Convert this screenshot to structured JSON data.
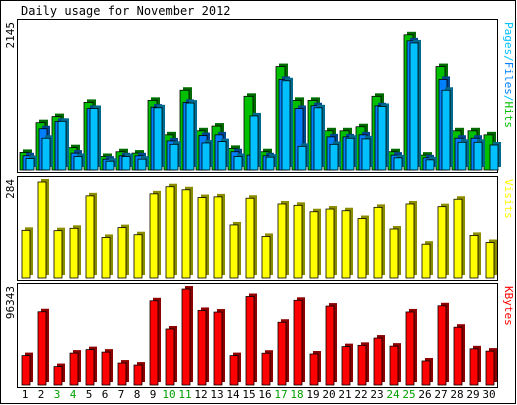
{
  "chart_data": {
    "type": "bar",
    "title": "Daily usage for November 2012",
    "categories": [
      "1",
      "2",
      "3",
      "4",
      "5",
      "6",
      "7",
      "8",
      "9",
      "10",
      "11",
      "12",
      "13",
      "14",
      "15",
      "16",
      "17",
      "18",
      "19",
      "20",
      "21",
      "22",
      "23",
      "24",
      "25",
      "26",
      "27",
      "28",
      "29",
      "30"
    ],
    "weekend_days": [
      "3",
      "4",
      "10",
      "11",
      "17",
      "18",
      "24",
      "25"
    ],
    "panels": [
      {
        "name": "hits-files-pages",
        "ylabel_parts": [
          {
            "text": "Pages",
            "color": "#00c0ff"
          },
          {
            "text": "/",
            "color": "#00c0ff"
          },
          {
            "text": "Files",
            "color": "#0080ff"
          },
          {
            "text": "/",
            "color": "#00c0ff"
          },
          {
            "text": "Hits",
            "color": "#00c000"
          }
        ],
        "ymax_label": "2145",
        "ylim": [
          0,
          2145
        ],
        "series": [
          {
            "name": "Hits",
            "color": "#00c000",
            "values": [
              260,
              700,
              790,
              330,
              1000,
              200,
              270,
              250,
              1030,
              520,
              1180,
              580,
              650,
              320,
              1090,
              270,
              1530,
              1030,
              1030,
              580,
              580,
              640,
              1090,
              270,
              2000,
              220,
              1530,
              580,
              580,
              520
            ]
          },
          {
            "name": "Files",
            "color": "#0080ff",
            "values": [
              210,
              610,
              720,
              250,
              910,
              160,
              210,
              210,
              930,
              430,
              1000,
              510,
              520,
              270,
              220,
              210,
              1340,
              910,
              950,
              490,
              490,
              520,
              950,
              220,
              1910,
              180,
              1340,
              470,
              470,
              0
            ]
          },
          {
            "name": "Pages",
            "color": "#00c0ff",
            "values": [
              170,
              470,
              720,
              200,
              910,
              130,
              200,
              160,
              920,
              380,
              990,
              400,
              420,
              200,
              800,
              190,
              1320,
              350,
              920,
              380,
              470,
              460,
              940,
              180,
              1880,
              150,
              1180,
              410,
              410,
              370
            ]
          }
        ]
      },
      {
        "name": "visits",
        "ylabel_parts": [
          {
            "text": "Visits",
            "color": "#ffff00"
          }
        ],
        "ymax_label": "284",
        "ylim": [
          0,
          284
        ],
        "series": [
          {
            "name": "Visits",
            "color": "#ffff00",
            "values": [
              141,
              284,
              140,
              147,
              243,
              120,
              149,
              128,
              249,
              270,
              261,
              238,
              240,
              157,
              236,
              123,
              219,
              215,
              196,
              204,
              199,
              176,
              209,
              145,
              219,
              100,
              211,
              233,
              126,
              105
            ]
          }
        ]
      },
      {
        "name": "kbytes",
        "ylabel_parts": [
          {
            "text": "KBytes",
            "color": "#ff0000"
          }
        ],
        "ymax_label": "96343",
        "ylim": [
          0,
          96343
        ],
        "series": [
          {
            "name": "KBytes",
            "color": "#ff0000",
            "values": [
              29500,
              73500,
              18500,
              32000,
              35500,
              33000,
              22000,
              20000,
              84500,
              56200,
              96300,
              74800,
              73200,
              29500,
              88800,
              31900,
              63000,
              85000,
              31100,
              79200,
              38500,
              39800,
              47100,
              39000,
              73300,
              24100,
              79500,
              58000,
              36300,
              34000
            ]
          }
        ]
      }
    ]
  }
}
